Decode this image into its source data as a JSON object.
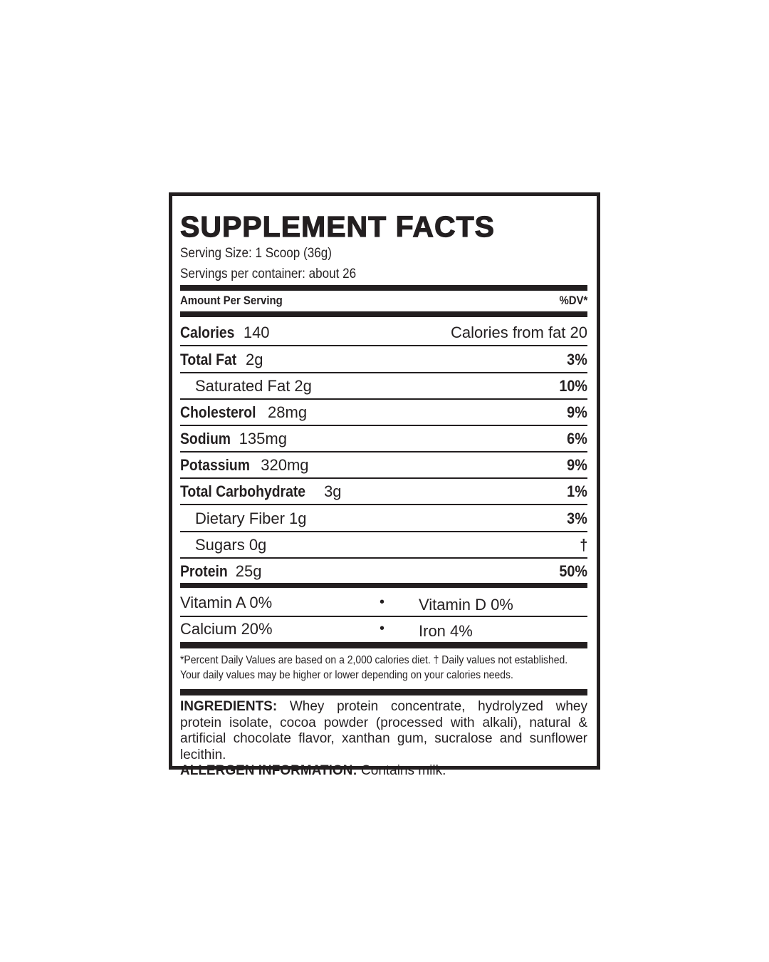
{
  "title": "SUPPLEMENT FACTS",
  "serving_size": "Serving Size: 1 Scoop (36g)",
  "servings_per_container": "Servings per container: about 26",
  "header": {
    "amount_per_serving": "Amount Per Serving",
    "dv": "%DV*"
  },
  "calories": {
    "name": "Calories",
    "amount": "140",
    "from_fat": "Calories from fat 20"
  },
  "nutrients": [
    {
      "name": "Total Fat",
      "amount": "2g",
      "dv": "3%"
    },
    {
      "name": "Saturated Fat 2g",
      "amount": "",
      "dv": "10%"
    },
    {
      "name": "Cholesterol",
      "amount": "28mg",
      "dv": "9%"
    },
    {
      "name": "Sodium",
      "amount": "135mg",
      "dv": "6%"
    },
    {
      "name": "Potassium",
      "amount": "320mg",
      "dv": "9%"
    },
    {
      "name": "Total Carbohydrate",
      "amount": "3g",
      "dv": "1%"
    },
    {
      "name": "Dietary Fiber 1g",
      "amount": "",
      "dv": "3%"
    },
    {
      "name": "Sugars 0g",
      "amount": "",
      "dv": "†"
    },
    {
      "name": "Protein",
      "amount": "25g",
      "dv": "50%"
    }
  ],
  "vitamins": [
    {
      "left": "Vitamin A 0%",
      "right": "Vitamin D 0%"
    },
    {
      "left": "Calcium 20%",
      "right": "Iron 4%"
    }
  ],
  "separator": "•",
  "footnote": [
    "*Percent Daily Values are based on a 2,000 calories diet. † Daily values not established.",
    "Your daily values may be higher or lower depending on your calories needs."
  ],
  "ingredients_label": "INGREDIENTS:",
  "ingredients": " Whey protein concentrate, hydrolyzed whey protein isolate, cocoa powder (processed with alkali), natural & artificial chocolate flavor, xanthan gum, sucralose and sunflower lecithin.",
  "allergen_label": "ALLERGEN INFORMATION:",
  "allergen": " Contains milk."
}
